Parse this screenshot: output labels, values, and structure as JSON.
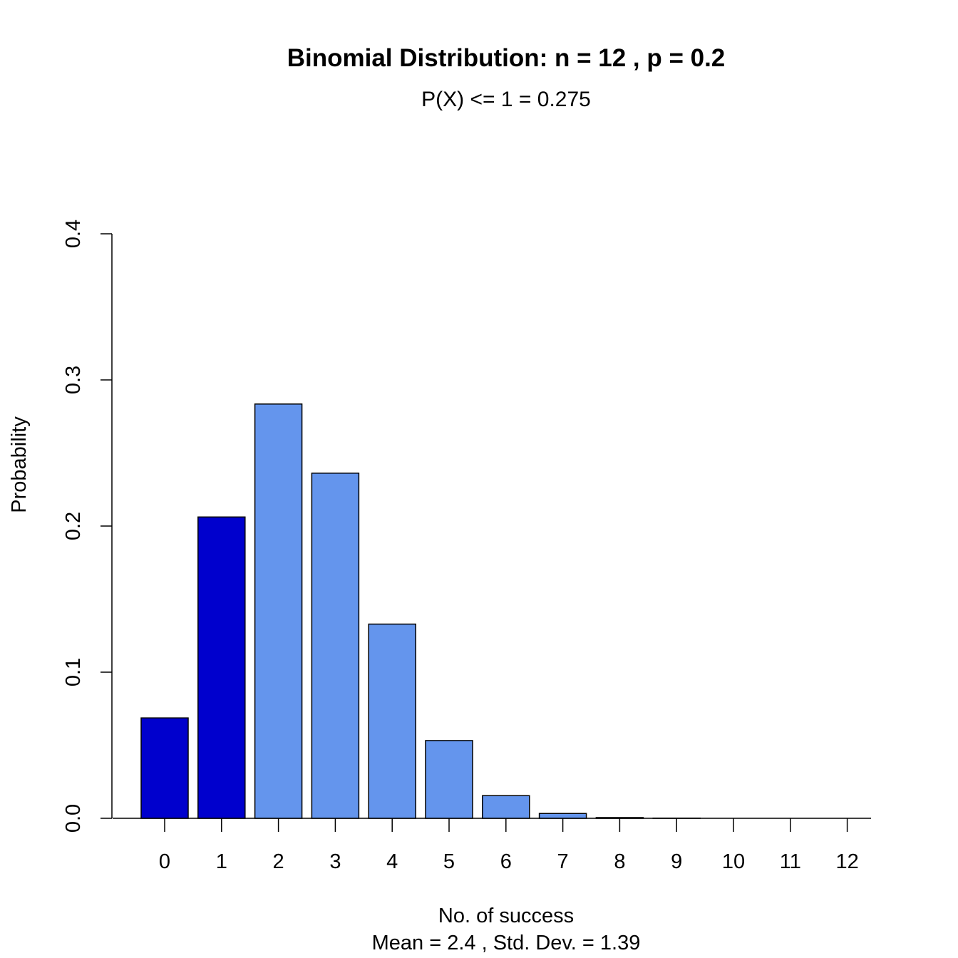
{
  "chart_data": {
    "type": "bar",
    "title": "Binomial Distribution: n = 12 , p = 0.2",
    "subtitle": "P(X) <= 1 = 0.275",
    "xlabel": "No. of success",
    "xlabel_sub": "Mean = 2.4 , Std. Dev. = 1.39",
    "ylabel": "Probability",
    "categories": [
      "0",
      "1",
      "2",
      "3",
      "4",
      "5",
      "6",
      "7",
      "8",
      "9",
      "10",
      "11",
      "12"
    ],
    "values": [
      0.0687,
      0.2062,
      0.2835,
      0.2362,
      0.1329,
      0.0532,
      0.0155,
      0.0033,
      0.0005,
      0.0001,
      0.0,
      0.0,
      0.0
    ],
    "highlight_through": 1,
    "ylim": [
      0,
      0.4
    ],
    "yticks": [
      "0.0",
      "0.1",
      "0.2",
      "0.3",
      "0.4"
    ],
    "ytick_values": [
      0,
      0.1,
      0.2,
      0.3,
      0.4
    ],
    "grid": false,
    "colors": {
      "highlight": "#0000CD",
      "normal": "#6495ED",
      "outline": "#000000"
    }
  }
}
